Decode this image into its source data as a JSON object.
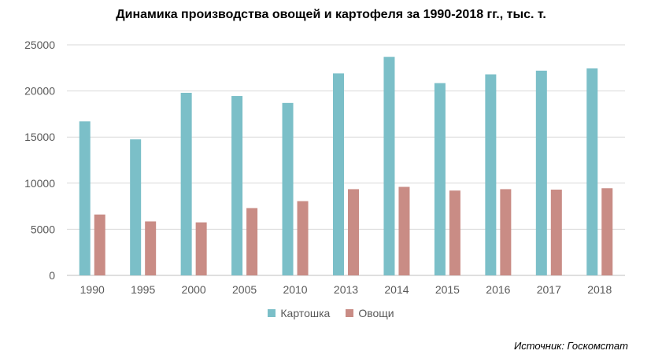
{
  "chart_data": {
    "type": "bar",
    "title": "Динамика производства овощей и картофеля за 1990-2018 гг., тыс. т.",
    "categories": [
      "1990",
      "1995",
      "2000",
      "2005",
      "2010",
      "2013",
      "2014",
      "2015",
      "2016",
      "2017",
      "2018"
    ],
    "series": [
      {
        "name": "Картошка",
        "color": "#7bbfc8",
        "values": [
          16700,
          14750,
          19800,
          19450,
          18700,
          21900,
          23700,
          20850,
          21800,
          22200,
          22450
        ]
      },
      {
        "name": "Овощи",
        "color": "#c98c85",
        "values": [
          6600,
          5850,
          5750,
          7300,
          8050,
          9350,
          9600,
          9200,
          9350,
          9300,
          9450
        ]
      }
    ],
    "y_ticks": [
      "0",
      "5000",
      "10000",
      "15000",
      "20000",
      "25000"
    ],
    "ylim": [
      0,
      25000
    ],
    "grid": true,
    "legend_position": "bottom"
  },
  "source_text": "Источник: Госкомстат"
}
